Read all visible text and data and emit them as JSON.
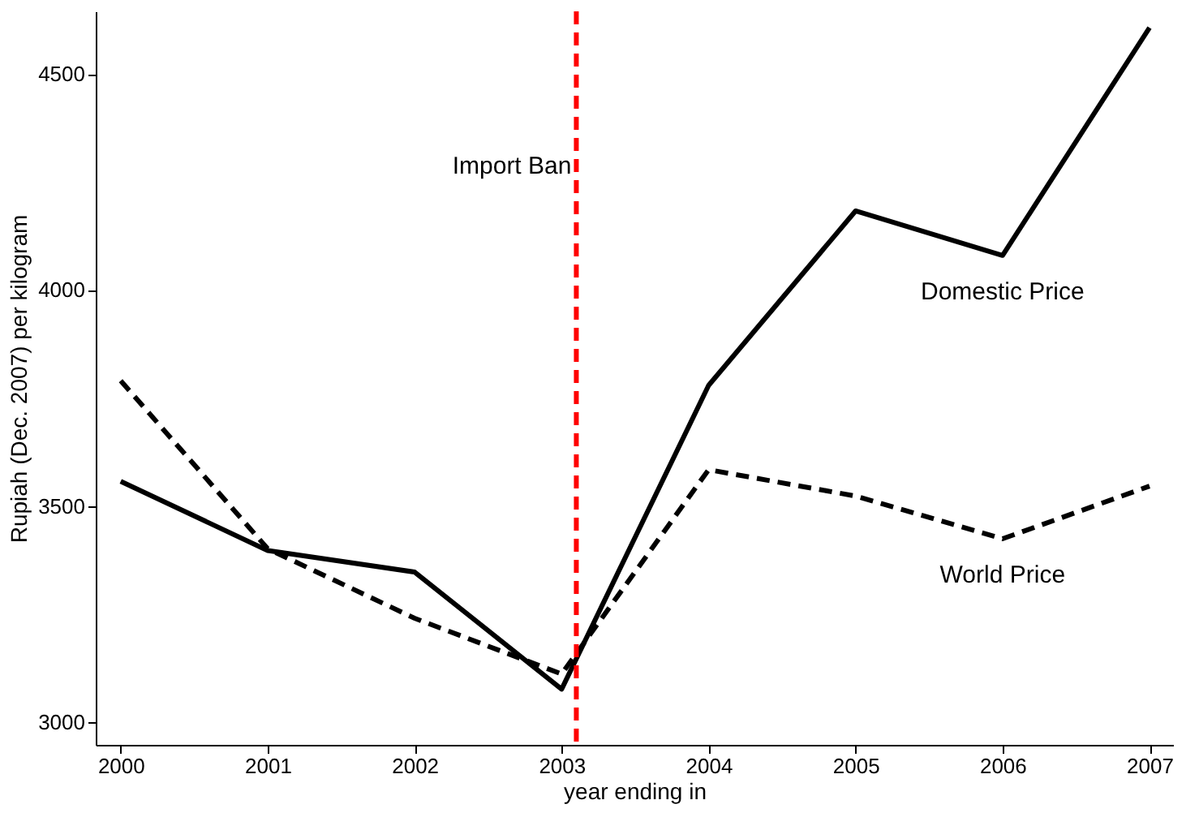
{
  "chart_data": {
    "type": "line",
    "xlabel": "year ending in",
    "ylabel": "Rupiah (Dec. 2007) per kilogram",
    "x": [
      2000,
      2001,
      2002,
      2003,
      2004,
      2005,
      2006,
      2007
    ],
    "series": [
      {
        "name": "Domestic Price",
        "color": "#000000",
        "line_style": "solid",
        "values": [
          3557,
          3397,
          3347,
          3076,
          3779,
          4183,
          4080,
          4607
        ]
      },
      {
        "name": "World Price",
        "color": "#000000",
        "line_style": "dashed",
        "values": [
          3790,
          3401,
          3240,
          3111,
          3584,
          3523,
          3424,
          3546
        ]
      }
    ],
    "xlim": [
      1999.83,
      2007.16
    ],
    "ylim": [
      2947,
      4645
    ],
    "xticks": [
      2000,
      2001,
      2002,
      2003,
      2004,
      2005,
      2006,
      2007
    ],
    "yticks": [
      3000,
      3500,
      4000,
      4500
    ],
    "ref_lines": [
      {
        "axis": "x",
        "value": 2003.1,
        "label": "Import Ban",
        "color": "#ff0000",
        "line_style": "dashed"
      }
    ],
    "grid": false,
    "marker": "none"
  }
}
